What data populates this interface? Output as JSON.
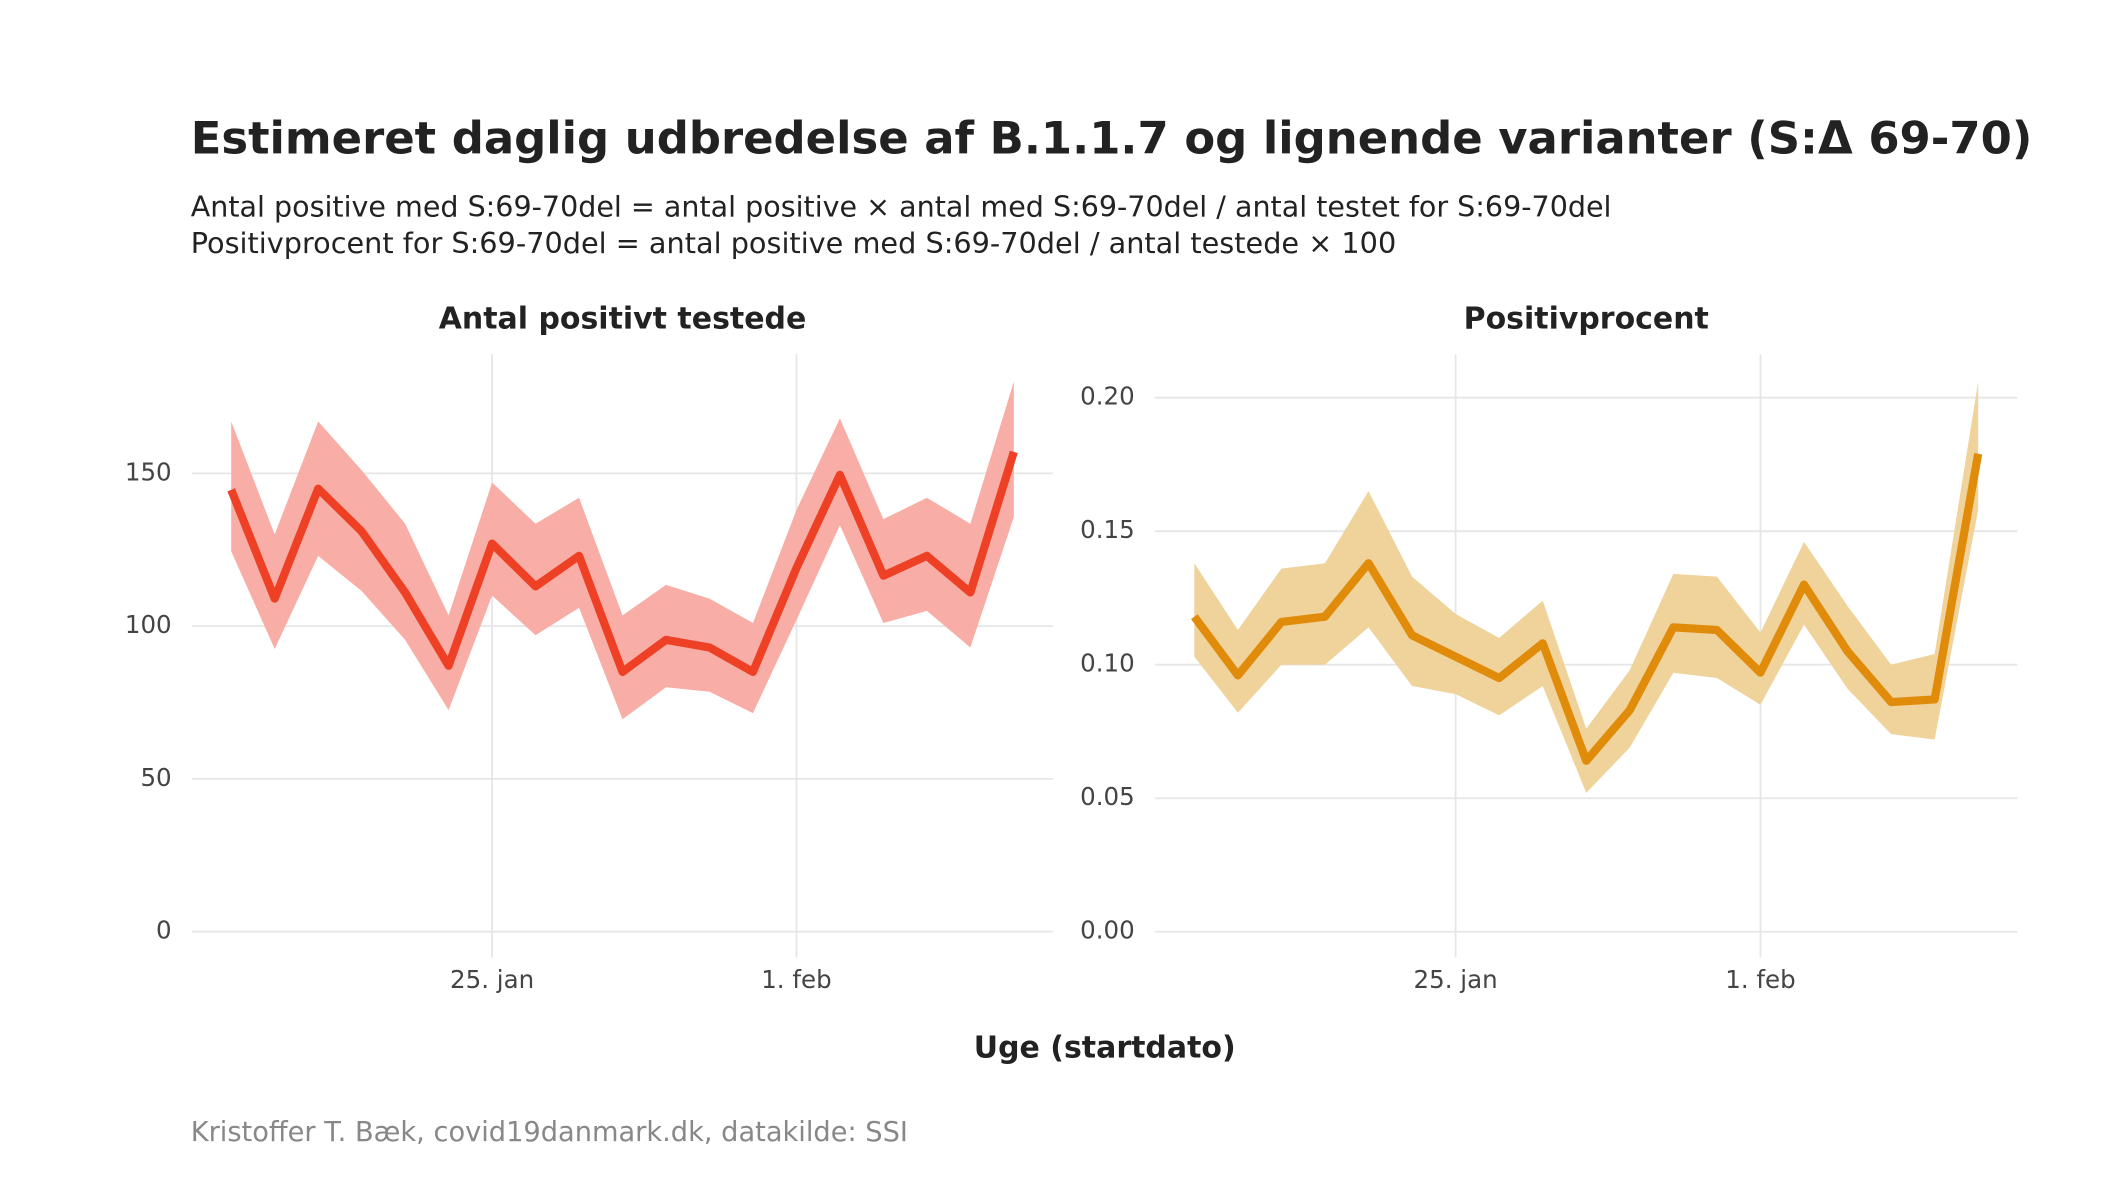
{
  "title": "Estimeret daglig udbredelse af B.1.1.7 og lignende varianter (S:Δ 69-70)",
  "subtitle": [
    "Antal positive med S:69-70del = antal positive × antal med S:69-70del / antal testet for S:69-70del",
    "Positivprocent for S:69-70del = antal positive med S:69-70del / antal testede × 100"
  ],
  "xlabel": "Uge (startdato)",
  "caption": "Kristoffer T. Bæk, covid19danmark.dk, datakilde: SSI",
  "chart_data": [
    {
      "type": "line",
      "title": "Antal positivt testede",
      "x": [
        19,
        20,
        21,
        22,
        23,
        24,
        25,
        26,
        27,
        28,
        29,
        30,
        31,
        32,
        33,
        34,
        35,
        36,
        37
      ],
      "xlim": [
        18.1,
        37.9
      ],
      "xticks": [
        {
          "value": 25,
          "label": "25. jan"
        },
        {
          "value": 32,
          "label": "1. feb"
        }
      ],
      "ylim": [
        -8.5,
        189
      ],
      "yticks": [
        0,
        50,
        100,
        150
      ],
      "grid": true,
      "series": [
        {
          "color": "#ee4025",
          "band_color": "#f8aea6",
          "values": [
            144.6,
            109,
            145,
            131,
            111,
            87,
            127,
            113,
            123,
            85,
            95.5,
            93,
            85,
            119,
            149.5,
            116.5,
            123,
            111,
            157
          ],
          "upper": [
            167,
            130,
            167,
            151,
            133.5,
            103.5,
            147,
            133.5,
            142,
            103.5,
            113.5,
            109,
            101,
            138,
            168,
            135,
            142,
            133.5,
            180
          ],
          "lower": [
            124.5,
            92.5,
            123,
            111.5,
            95.5,
            72.5,
            110,
            97,
            106,
            69.5,
            80,
            78.5,
            71.5,
            102,
            133,
            101,
            105,
            93,
            135.7
          ]
        }
      ]
    },
    {
      "type": "line",
      "title": "Positivprocent",
      "x": [
        19,
        20,
        21,
        22,
        23,
        24,
        25,
        26,
        27,
        28,
        29,
        30,
        31,
        32,
        33,
        34,
        35,
        36,
        37
      ],
      "xlim": [
        18.1,
        37.9
      ],
      "xticks": [
        {
          "value": 25,
          "label": "25. jan"
        },
        {
          "value": 32,
          "label": "1. feb"
        }
      ],
      "ylim": [
        -0.0097,
        0.2163
      ],
      "yticks": [
        {
          "value": 0,
          "label": "0.00"
        },
        {
          "value": 0.05,
          "label": "0.05"
        },
        {
          "value": 0.1,
          "label": "0.10"
        },
        {
          "value": 0.15,
          "label": "0.15"
        },
        {
          "value": 0.2,
          "label": "0.20"
        }
      ],
      "grid": true,
      "series": [
        {
          "color": "#e08b0a",
          "band_color": "#f0d29b",
          "values": [
            0.118,
            0.096,
            0.116,
            0.118,
            0.138,
            0.111,
            0.103,
            0.095,
            0.108,
            0.064,
            0.083,
            0.114,
            0.113,
            0.097,
            0.13,
            0.105,
            0.086,
            0.087,
            0.179
          ],
          "upper": [
            0.138,
            0.113,
            0.136,
            0.138,
            0.165,
            0.133,
            0.119,
            0.11,
            0.124,
            0.076,
            0.098,
            0.134,
            0.133,
            0.112,
            0.146,
            0.122,
            0.1,
            0.104,
            0.206
          ],
          "lower": [
            0.103,
            0.082,
            0.1,
            0.1,
            0.114,
            0.092,
            0.089,
            0.081,
            0.092,
            0.052,
            0.069,
            0.097,
            0.095,
            0.085,
            0.115,
            0.091,
            0.074,
            0.072,
            0.158
          ]
        }
      ]
    }
  ]
}
